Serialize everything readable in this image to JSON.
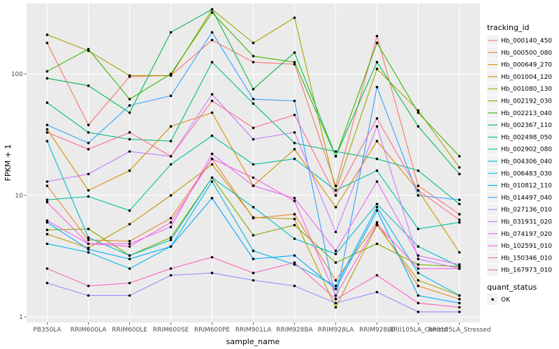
{
  "chart_data": {
    "type": "line",
    "title": "",
    "xlabel": "sample_name",
    "ylabel": "FPKM + 1",
    "y_scale": "log10",
    "ylim": [
      0.9,
      380
    ],
    "y_ticks": [
      1,
      10,
      100
    ],
    "grid": true,
    "legend_position": "right",
    "categories": [
      "PB350LA",
      "RRIM600LA",
      "RRIM600LE",
      "RRIM600SE",
      "RRIM600PE",
      "RRIM901LA",
      "RRIM928BA",
      "RRIM928LA",
      "RRIM928LE",
      "RRII105LA_Control",
      "RRII105LA_Stressed"
    ],
    "legend_title": "tracking_id",
    "quant_legend_title": "quant_status",
    "quant_legend_label": "OK",
    "series": [
      {
        "name": "Hb_000140_450",
        "color": "#F8766D",
        "values": [
          180,
          38,
          95,
          97,
          190,
          125,
          120,
          12,
          205,
          12,
          7
        ]
      },
      {
        "name": "Hb_000500_080",
        "color": "#EA8331",
        "values": [
          12,
          4.3,
          4.2,
          6.5,
          20,
          6.5,
          7,
          2.0,
          6.0,
          1.8,
          1.4
        ]
      },
      {
        "name": "Hb_000649_270",
        "color": "#D89000",
        "values": [
          35,
          11,
          16,
          37,
          48,
          12,
          24,
          8,
          28,
          11,
          3.4
        ]
      },
      {
        "name": "Hb_001004_120",
        "color": "#C09B00",
        "values": [
          4.8,
          3.7,
          5.8,
          10,
          18,
          6.6,
          6.4,
          1.2,
          5.7,
          2.0,
          1.5
        ]
      },
      {
        "name": "Hb_001080_130",
        "color": "#A3A500",
        "values": [
          210,
          155,
          97,
          97,
          340,
          180,
          290,
          11,
          110,
          50,
          17
        ]
      },
      {
        "name": "Hb_002192_030",
        "color": "#7CAE00",
        "values": [
          5.2,
          5.3,
          3.2,
          4.5,
          14,
          4.7,
          5.7,
          2.8,
          4.0,
          2.7,
          2.6
        ]
      },
      {
        "name": "Hb_002213_040",
        "color": "#39B600",
        "values": [
          105,
          160,
          62,
          100,
          320,
          140,
          125,
          21,
          180,
          48,
          21
        ]
      },
      {
        "name": "Hb_002367_110",
        "color": "#00BB4E",
        "values": [
          92,
          80,
          48,
          220,
          340,
          75,
          150,
          21,
          125,
          37,
          15
        ]
      },
      {
        "name": "Hb_002498_050",
        "color": "#00BF7D",
        "values": [
          58,
          33,
          29,
          28,
          125,
          57,
          27,
          23,
          20,
          16,
          8.5
        ]
      },
      {
        "name": "Hb_002902_080",
        "color": "#00C1A3",
        "values": [
          9.2,
          9.8,
          7.5,
          18,
          31,
          18,
          20,
          11,
          16,
          5.3,
          6.0
        ]
      },
      {
        "name": "Hb_004306_040",
        "color": "#00BFC4",
        "values": [
          28,
          4.5,
          3.2,
          4.3,
          14,
          8,
          4.4,
          3.3,
          8.5,
          3.8,
          2.6
        ]
      },
      {
        "name": "Hb_006483_030",
        "color": "#00B8E7",
        "values": [
          4.0,
          3.4,
          2.5,
          3.8,
          13,
          3.5,
          2.7,
          1.8,
          8.0,
          2.3,
          1.5
        ]
      },
      {
        "name": "Hb_010812_110",
        "color": "#00A9FF",
        "values": [
          6.0,
          3.6,
          3.0,
          3.8,
          9.5,
          3.0,
          3.2,
          1.7,
          7.5,
          1.5,
          1.3
        ]
      },
      {
        "name": "Hb_014497_040",
        "color": "#35A2FF",
        "values": [
          38,
          27,
          55,
          66,
          220,
          62,
          60,
          1.4,
          78,
          10,
          9.2
        ]
      },
      {
        "name": "Hb_027136_010",
        "color": "#9590FF",
        "values": [
          1.9,
          1.5,
          1.5,
          2.2,
          2.3,
          2.0,
          1.8,
          1.3,
          1.6,
          1.1,
          1.1
        ]
      },
      {
        "name": "Hb_031931_020",
        "color": "#C77CFF",
        "values": [
          13,
          15,
          23,
          21,
          68,
          29,
          33,
          5.0,
          37,
          3.0,
          2.5
        ]
      },
      {
        "name": "Hb_074197_020",
        "color": "#E76BF3",
        "values": [
          6.2,
          4.0,
          4.0,
          5.5,
          22,
          12,
          9.5,
          3.5,
          13,
          3.2,
          2.7
        ]
      },
      {
        "name": "Hb_102591_010",
        "color": "#FA62DB",
        "values": [
          8.8,
          4.0,
          3.8,
          6.0,
          20,
          14,
          9.0,
          1.5,
          5.8,
          2.5,
          2.5
        ]
      },
      {
        "name": "Hb_150346_010",
        "color": "#FF62BC",
        "values": [
          2.5,
          1.8,
          1.9,
          2.5,
          3.1,
          2.3,
          2.8,
          1.4,
          2.2,
          1.3,
          1.2
        ]
      },
      {
        "name": "Hb_167973_010",
        "color": "#FF6C91",
        "values": [
          33,
          24,
          33,
          21,
          60,
          36,
          46,
          10,
          43,
          11,
          6.3
        ]
      }
    ]
  }
}
